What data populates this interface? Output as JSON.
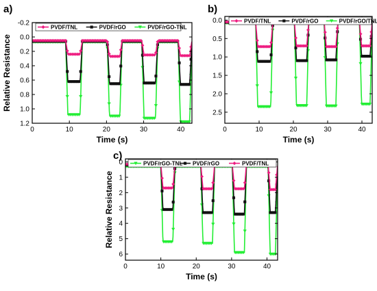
{
  "figure": {
    "series_colors": {
      "PVDF/TNL": "#ee1c80",
      "PVDF/rGO": "#111111",
      "PVDF/rGO-TNL": "#22ee33"
    }
  },
  "chart_data": [
    {
      "panel_label": "a)",
      "type": "line",
      "xlabel": "Time (s)",
      "ylabel": "Relative Resistance",
      "xlim": [
        0,
        43
      ],
      "ylim": [
        -0.2,
        1.2
      ],
      "y_inverted": true,
      "xticks": [
        0,
        10,
        20,
        30,
        40
      ],
      "yticks": [
        -0.2,
        0.0,
        0.2,
        0.4,
        0.6,
        0.8,
        1.0,
        1.2
      ],
      "ytick_labels": [
        "-0.2",
        "0.0",
        "0.2",
        "0.4",
        "0.6",
        "0.8",
        "1.0",
        "1.2"
      ],
      "legend": [
        "PVDF/TNL",
        "PVDF/rGO",
        "PVDF/rGO-TNL"
      ],
      "legend_position": "top",
      "pulses": [
        {
          "start": 9.0,
          "end": 13.5
        },
        {
          "start": 20.2,
          "end": 24.2
        },
        {
          "start": 29.5,
          "end": 33.8
        },
        {
          "start": 39.3,
          "end": 43.0
        }
      ],
      "series": [
        {
          "name": "PVDF/TNL",
          "marker": "diamond",
          "baseline": 0.05,
          "depths": [
            0.24,
            0.27,
            0.25,
            0.26
          ]
        },
        {
          "name": "PVDF/rGO",
          "marker": "square",
          "baseline": 0.06,
          "depths": [
            0.62,
            0.65,
            0.64,
            0.66
          ]
        },
        {
          "name": "PVDF/rGO-TNL",
          "marker": "triangle-down",
          "baseline": 0.07,
          "depths": [
            1.08,
            1.1,
            1.13,
            1.18
          ]
        }
      ]
    },
    {
      "panel_label": "b)",
      "type": "line",
      "xlabel": "Time (s)",
      "ylabel": "",
      "xlim": [
        0,
        43
      ],
      "ylim": [
        -0.1,
        2.8
      ],
      "y_inverted": true,
      "xticks": [
        0,
        10,
        20,
        30,
        40
      ],
      "yticks": [
        0.0,
        0.5,
        1.0,
        1.5,
        2.0,
        2.5
      ],
      "ytick_labels": [
        "0.0",
        "0.5",
        "1.0",
        "1.5",
        "2.0",
        "2.5"
      ],
      "legend": [
        "PVDF/TNL",
        "PVDF/rGO",
        "PVDF/rGO/TNL"
      ],
      "legend_position": "top",
      "pulses": [
        {
          "start": 9.0,
          "end": 14.0
        },
        {
          "start": 20.3,
          "end": 24.5
        },
        {
          "start": 29.0,
          "end": 33.0
        },
        {
          "start": 39.3,
          "end": 43.0
        }
      ],
      "series": [
        {
          "name": "PVDF/TNL",
          "marker": "diamond",
          "baseline": 0.05,
          "depths": [
            0.72,
            0.7,
            0.72,
            0.7
          ]
        },
        {
          "name": "PVDF/rGO",
          "marker": "square",
          "baseline": 0.06,
          "depths": [
            1.12,
            1.1,
            1.08,
            0.98
          ]
        },
        {
          "name": "PVDF/rGO/TNL",
          "marker": "triangle-down",
          "baseline": 0.08,
          "depths": [
            2.35,
            2.32,
            2.33,
            2.28
          ]
        }
      ]
    },
    {
      "panel_label": "c)",
      "type": "line",
      "xlabel": "Time (s)",
      "ylabel": "Relative Resistance",
      "xlim": [
        0,
        43
      ],
      "ylim": [
        -0.2,
        6.4
      ],
      "y_inverted": true,
      "xticks": [
        0,
        10,
        20,
        30,
        40
      ],
      "yticks": [
        0,
        1,
        2,
        3,
        4,
        5,
        6
      ],
      "ytick_labels": [
        "0",
        "1",
        "2",
        "3",
        "4",
        "5",
        "6"
      ],
      "legend": [
        "PVDF/rGO-TNL",
        "PVDF/rGO",
        "PVDF/TNL"
      ],
      "legend_position": "top",
      "pulses": [
        {
          "start": 10.0,
          "end": 14.0
        },
        {
          "start": 21.3,
          "end": 25.2
        },
        {
          "start": 30.2,
          "end": 34.2
        },
        {
          "start": 40.3,
          "end": 43.0
        }
      ],
      "series": [
        {
          "name": "PVDF/rGO-TNL",
          "marker": "triangle-down",
          "baseline": 0.3,
          "depths": [
            5.2,
            5.3,
            5.9,
            6.0
          ]
        },
        {
          "name": "PVDF/rGO",
          "marker": "square",
          "baseline": 0.2,
          "depths": [
            3.1,
            3.3,
            3.4,
            3.3
          ]
        },
        {
          "name": "PVDF/TNL",
          "marker": "diamond",
          "baseline": 0.15,
          "depths": [
            1.7,
            1.75,
            1.75,
            1.8
          ]
        }
      ]
    }
  ]
}
